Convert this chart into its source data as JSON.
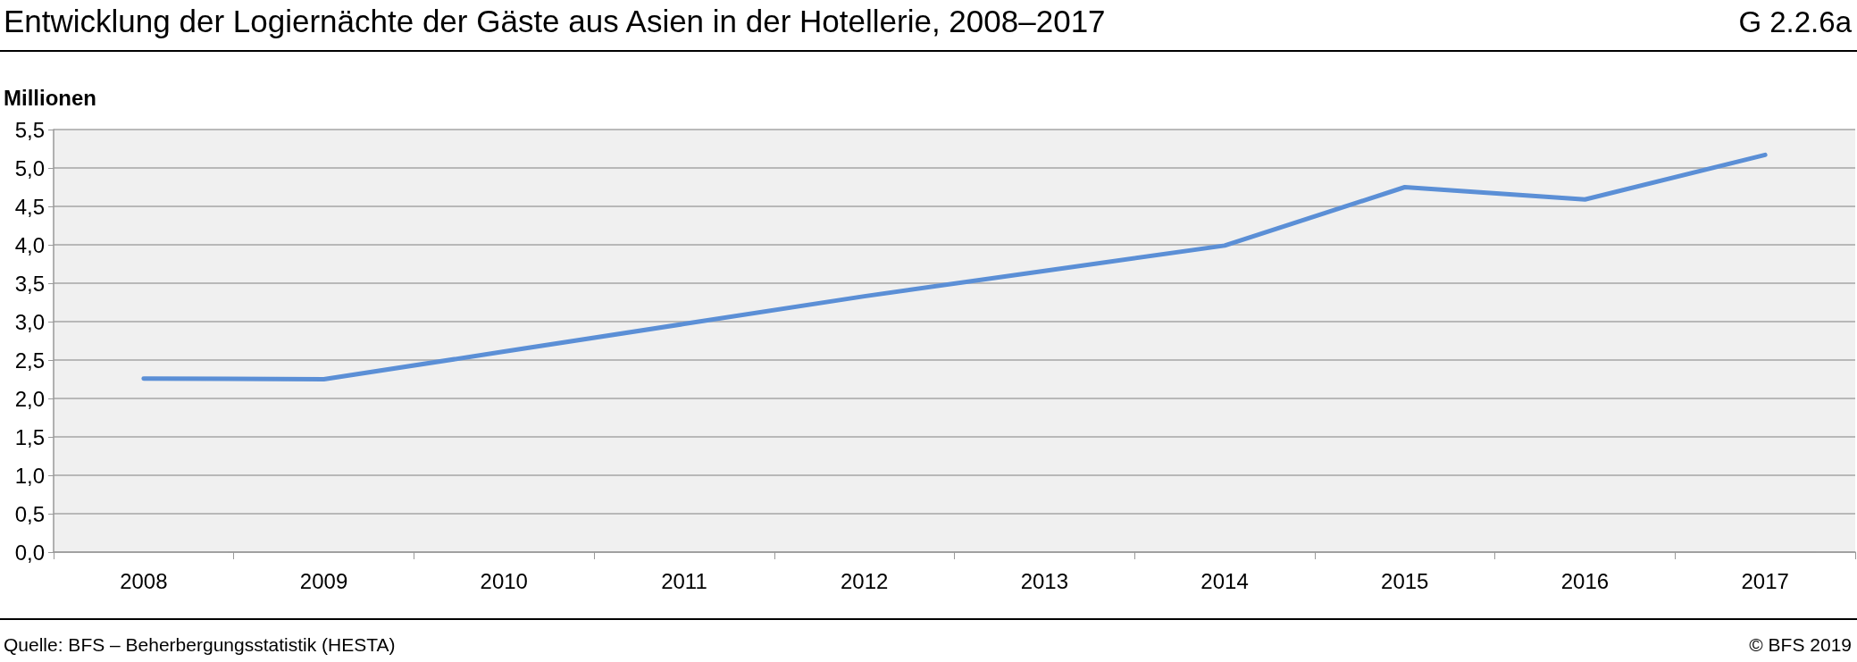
{
  "chart_data": {
    "type": "line",
    "title": "Entwicklung der Logiernächte der Gäste aus Asien in der Hotellerie, 2008–2017",
    "ylabel": "Millionen",
    "annotations": [
      "G 2.2.6a",
      "Quelle: BFS – Beherbergungsstatistik (HESTA)",
      "© BFS 2019"
    ],
    "categories": [
      "2008",
      "2009",
      "2010",
      "2011",
      "2012",
      "2013",
      "2014",
      "2015",
      "2016",
      "2017"
    ],
    "series": [
      {
        "color": "#5b8fd6",
        "values": [
          2.26,
          2.25,
          2.61,
          2.97,
          3.33,
          3.66,
          3.99,
          4.75,
          4.59,
          5.17
        ]
      }
    ],
    "ylim": [
      0,
      5.5
    ],
    "yticks": [
      {
        "value": 0,
        "label": "0,0"
      },
      {
        "value": 0.5,
        "label": "0,5"
      },
      {
        "value": 1,
        "label": "1,0"
      },
      {
        "value": 1.5,
        "label": "1,5"
      },
      {
        "value": 2,
        "label": "2,0"
      },
      {
        "value": 2.5,
        "label": "2,5"
      },
      {
        "value": 3,
        "label": "3,0"
      },
      {
        "value": 3.5,
        "label": "3,5"
      },
      {
        "value": 4,
        "label": "4,0"
      },
      {
        "value": 4.5,
        "label": "4,5"
      },
      {
        "value": 5,
        "label": "5,0"
      },
      {
        "value": 5.5,
        "label": "5,5"
      }
    ],
    "grid": "y",
    "marker": "none",
    "line_style": "solid"
  }
}
